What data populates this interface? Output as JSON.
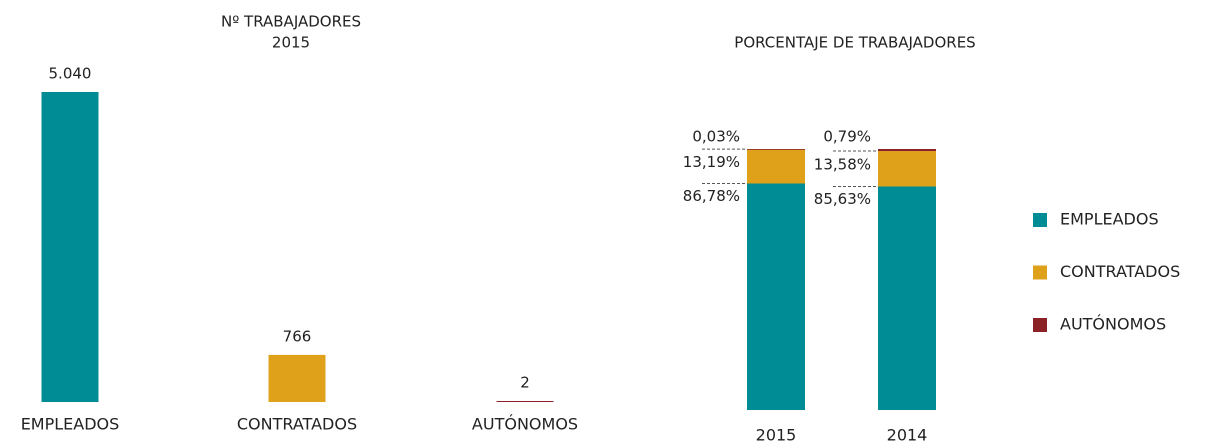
{
  "chart_data": [
    {
      "type": "bar",
      "title": "Nº TRABAJADORES",
      "subtitle": "2015",
      "categories": [
        "EMPLEADOS",
        "CONTRATADOS",
        "AUTÓNOMOS"
      ],
      "values": [
        5040,
        766,
        2
      ],
      "value_labels": [
        "5.040",
        "766",
        "2"
      ],
      "colors": [
        "#008c95",
        "#dfa01a",
        "#8b2326"
      ]
    },
    {
      "type": "stacked_bar",
      "title": "PORCENTAJE DE TRABAJADORES",
      "categories": [
        "2015",
        "2014"
      ],
      "series": [
        {
          "name": "EMPLEADOS",
          "color": "#008c95",
          "values": [
            86.78,
            85.63
          ],
          "value_labels": [
            "86,78%",
            "85,63%"
          ]
        },
        {
          "name": "CONTRATADOS",
          "color": "#dfa01a",
          "values": [
            13.19,
            13.58
          ],
          "value_labels": [
            "13,19%",
            "13,58%"
          ]
        },
        {
          "name": "AUTÓNOMOS",
          "color": "#8b2326",
          "values": [
            0.03,
            0.79
          ],
          "value_labels": [
            "0,03%",
            "0,79%"
          ]
        }
      ],
      "legend": "right"
    }
  ]
}
